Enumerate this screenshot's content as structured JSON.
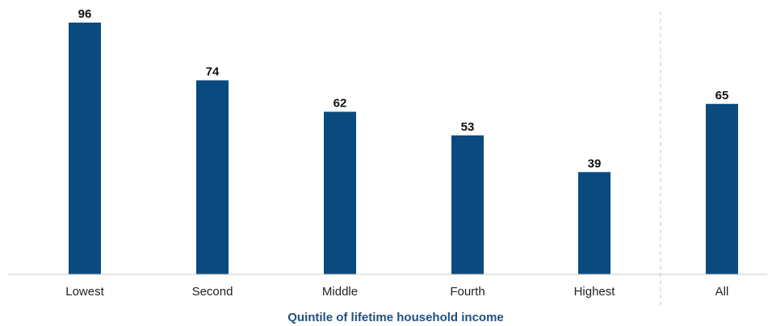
{
  "chart_data": {
    "type": "bar",
    "categories": [
      "Lowest",
      "Second",
      "Middle",
      "Fourth",
      "Highest",
      "All"
    ],
    "values": [
      96,
      74,
      62,
      53,
      39,
      65
    ],
    "title": "",
    "xlabel": "Quintile of lifetime household income",
    "ylabel": "",
    "ylim": [
      0,
      100
    ],
    "grid": false,
    "legend": "none",
    "separator_before": "All",
    "bar_color": "#0b4a7e",
    "xlabel_color": "#1f4f82"
  }
}
